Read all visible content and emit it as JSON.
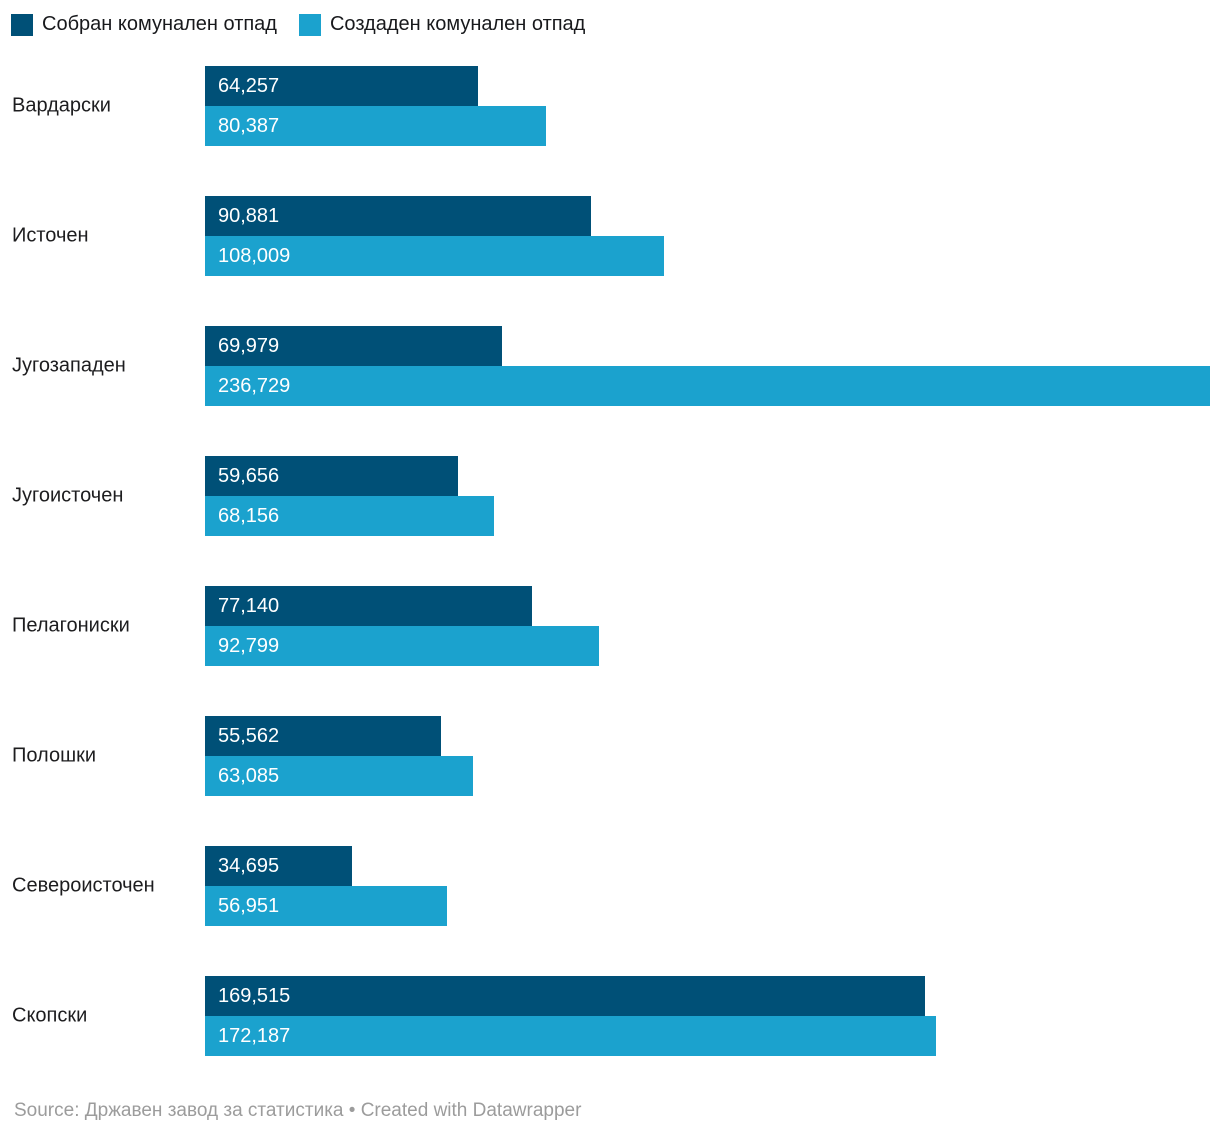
{
  "legend": {
    "items": [
      {
        "label": "Собран комунален отпад",
        "color": "#005077"
      },
      {
        "label": "Создаден комунален отпад",
        "color": "#1ba2ce"
      }
    ]
  },
  "chart_data": {
    "type": "bar",
    "orientation": "horizontal",
    "title": "",
    "xlabel": "",
    "ylabel": "",
    "grid": false,
    "legend_position": "top",
    "xmax": 236729,
    "categories": [
      "Вардарски",
      "Источен",
      "Југозападен",
      "Југоисточен",
      "Пелагониски",
      "Полошки",
      "Североисточен",
      "Скопски"
    ],
    "series": [
      {
        "name": "Собран комунален отпад",
        "color": "#005077",
        "values": [
          64257,
          90881,
          69979,
          59656,
          77140,
          55562,
          34695,
          169515
        ],
        "value_labels": [
          "64,257",
          "90,881",
          "69,979",
          "59,656",
          "77,140",
          "55,562",
          "34,695",
          "169,515"
        ]
      },
      {
        "name": "Создаден комунален отпад",
        "color": "#1ba2ce",
        "values": [
          80387,
          108009,
          236729,
          68156,
          92799,
          63085,
          56951,
          172187
        ],
        "value_labels": [
          "80,387",
          "108,009",
          "236,729",
          "68,156",
          "92,799",
          "63,085",
          "56,951",
          "172,187"
        ]
      }
    ]
  },
  "footer": {
    "text": "Source: Државен завод за статистика • Created with Datawrapper"
  }
}
